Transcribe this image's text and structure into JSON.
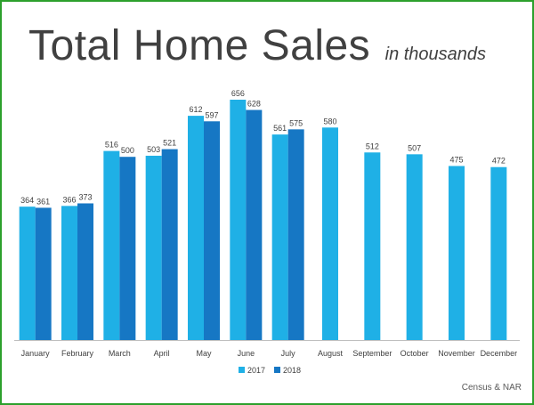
{
  "header": {
    "title": "Total Home Sales",
    "subtitle": "in thousands"
  },
  "source": "Census & NAR",
  "colors": {
    "series_2017": "#1fb0e6",
    "series_2018": "#1677c4",
    "frame": "#2ca02c",
    "axis": "#bfbfbf",
    "text": "#404040"
  },
  "chart_data": {
    "type": "bar",
    "title": "Total Home Sales",
    "subtitle": "in thousands",
    "categories": [
      "January",
      "February",
      "March",
      "April",
      "May",
      "June",
      "July",
      "August",
      "September",
      "October",
      "November",
      "December"
    ],
    "series": [
      {
        "name": "2017",
        "color": "#1fb0e6",
        "values": [
          364,
          366,
          516,
          503,
          612,
          656,
          561,
          580,
          512,
          507,
          475,
          472
        ]
      },
      {
        "name": "2018",
        "color": "#1677c4",
        "values": [
          361,
          373,
          500,
          521,
          597,
          628,
          575,
          null,
          null,
          null,
          null,
          null
        ]
      }
    ],
    "ylim": [
      0,
      656
    ],
    "grid": false,
    "legend": "bottom",
    "data_labels": true
  }
}
